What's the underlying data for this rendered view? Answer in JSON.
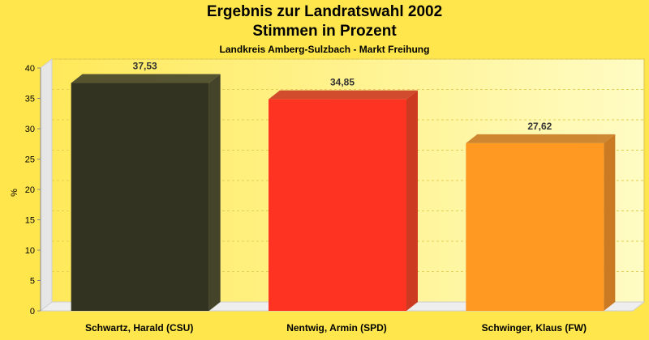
{
  "chart_data": {
    "type": "bar",
    "title": "Ergebnis zur Landratswahl 2002",
    "title_line2": "Stimmen in Prozent",
    "subtitle": "Landkreis Amberg-Sulzbach - Markt Freihung",
    "ylabel": "%",
    "xlabel": "",
    "ylim": [
      0,
      40
    ],
    "yticks": [
      "0",
      "5",
      "10",
      "15",
      "20",
      "25",
      "30",
      "35",
      "40"
    ],
    "grid": true,
    "categories": [
      "Schwartz, Harald (CSU)",
      "Nentwig, Armin (SPD)",
      "Schwinger, Klaus (FW)"
    ],
    "values": [
      37.53,
      34.85,
      27.62
    ],
    "value_labels": [
      "37,53",
      "34,85",
      "27,62"
    ],
    "colors": [
      "#333322",
      "#ff3322",
      "#ff9922"
    ],
    "side_colors": [
      "#44442a",
      "#cc3a22",
      "#c97a22"
    ]
  }
}
